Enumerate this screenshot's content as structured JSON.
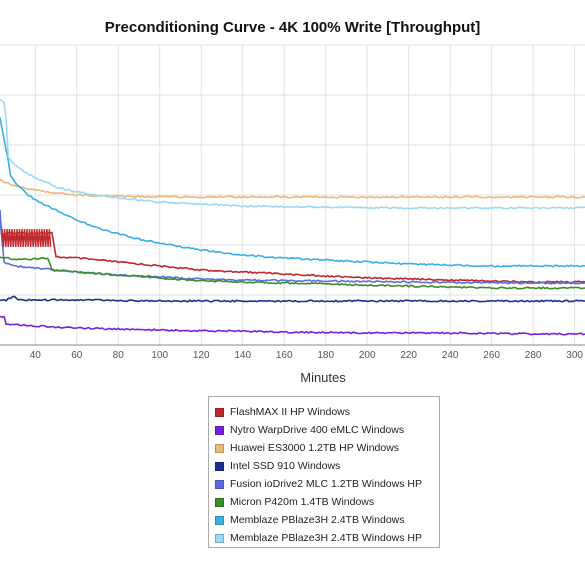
{
  "chart_data": {
    "type": "line",
    "title": "Preconditioning Curve - 4K 100% Write [Throughput]",
    "xlabel": "Minutes",
    "ylabel": "",
    "xlim": [
      23,
      305
    ],
    "x_ticks": [
      "40",
      "60",
      "80",
      "100",
      "120",
      "140",
      "160",
      "180",
      "200",
      "220",
      "240",
      "260",
      "280",
      "300"
    ],
    "grid": true,
    "legend_position": "bottom",
    "series": [
      {
        "name": "FlashMAX II HP Windows",
        "color": "#c0282d",
        "points": [
          [
            23,
            215
          ],
          [
            24,
            237
          ],
          [
            25,
            234
          ],
          [
            28,
            233
          ],
          [
            32,
            233
          ],
          [
            36,
            233
          ],
          [
            40,
            233
          ],
          [
            44,
            233
          ],
          [
            48,
            233
          ],
          [
            50,
            257
          ],
          [
            60,
            258
          ],
          [
            70,
            260
          ],
          [
            80,
            262
          ],
          [
            90,
            264
          ],
          [
            100,
            266
          ],
          [
            110,
            268
          ],
          [
            120,
            270
          ],
          [
            140,
            272
          ],
          [
            160,
            274
          ],
          [
            180,
            276
          ],
          [
            200,
            278
          ],
          [
            220,
            279
          ],
          [
            240,
            280
          ],
          [
            260,
            281
          ],
          [
            280,
            282
          ],
          [
            305,
            282
          ]
        ]
      },
      {
        "name": "Nytro WarpDrive 400 eMLC Windows",
        "color": "#7a1fe0",
        "points": [
          [
            23,
            316
          ],
          [
            25,
            317
          ],
          [
            26,
            324
          ],
          [
            40,
            326
          ],
          [
            60,
            328
          ],
          [
            80,
            329
          ],
          [
            100,
            330
          ],
          [
            120,
            331
          ],
          [
            140,
            331
          ],
          [
            160,
            332
          ],
          [
            200,
            333
          ],
          [
            240,
            333
          ],
          [
            280,
            334
          ],
          [
            305,
            334
          ]
        ]
      },
      {
        "name": "Huawei ES3000 1.2TB HP Windows",
        "color": "#e8b87a",
        "points": [
          [
            23,
            180
          ],
          [
            30,
            186
          ],
          [
            40,
            190
          ],
          [
            50,
            193
          ],
          [
            60,
            195
          ],
          [
            80,
            196
          ],
          [
            100,
            197
          ],
          [
            140,
            197
          ],
          [
            180,
            197
          ],
          [
            220,
            197
          ],
          [
            260,
            197
          ],
          [
            300,
            197
          ],
          [
            305,
            197
          ]
        ]
      },
      {
        "name": "Intel SSD 910 Windows",
        "color": "#1f2f8f",
        "points": [
          [
            23,
            301
          ],
          [
            26,
            300
          ],
          [
            30,
            296
          ],
          [
            32,
            300
          ],
          [
            40,
            300
          ],
          [
            60,
            300
          ],
          [
            100,
            301
          ],
          [
            140,
            301
          ],
          [
            180,
            301
          ],
          [
            220,
            301
          ],
          [
            260,
            301
          ],
          [
            305,
            301
          ]
        ]
      },
      {
        "name": "Fusion ioDrive2 MLC 1.2TB Windows HP",
        "color": "#5a6ee0",
        "points": [
          [
            23,
            210
          ],
          [
            23.5,
            230
          ],
          [
            25,
            262
          ],
          [
            30,
            266
          ],
          [
            40,
            268
          ],
          [
            60,
            272
          ],
          [
            80,
            275
          ],
          [
            100,
            277
          ],
          [
            120,
            279
          ],
          [
            140,
            280
          ],
          [
            180,
            281
          ],
          [
            220,
            282
          ],
          [
            260,
            283
          ],
          [
            305,
            283
          ]
        ]
      },
      {
        "name": "Micron P420m 1.4TB Windows",
        "color": "#3c8c2a",
        "points": [
          [
            23,
            257
          ],
          [
            30,
            259
          ],
          [
            40,
            259
          ],
          [
            46,
            258
          ],
          [
            48,
            270
          ],
          [
            60,
            272
          ],
          [
            80,
            275
          ],
          [
            100,
            278
          ],
          [
            120,
            281
          ],
          [
            140,
            282
          ],
          [
            160,
            283
          ],
          [
            180,
            284
          ],
          [
            200,
            285
          ],
          [
            220,
            286
          ],
          [
            240,
            287
          ],
          [
            260,
            288
          ],
          [
            280,
            288
          ],
          [
            305,
            288
          ]
        ]
      },
      {
        "name": "Memblaze PBlaze3H 2.4TB Windows",
        "color": "#3aaee8",
        "points": [
          [
            23,
            118
          ],
          [
            25,
            140
          ],
          [
            27,
            160
          ],
          [
            28,
            175
          ],
          [
            30,
            182
          ],
          [
            35,
            192
          ],
          [
            40,
            200
          ],
          [
            50,
            210
          ],
          [
            60,
            220
          ],
          [
            70,
            228
          ],
          [
            80,
            234
          ],
          [
            90,
            239
          ],
          [
            100,
            243
          ],
          [
            120,
            250
          ],
          [
            140,
            255
          ],
          [
            160,
            258
          ],
          [
            180,
            260
          ],
          [
            200,
            262
          ],
          [
            220,
            264
          ],
          [
            240,
            265
          ],
          [
            260,
            266
          ],
          [
            280,
            266
          ],
          [
            305,
            266
          ]
        ]
      },
      {
        "name": "Memblaze PBlaze3H 2.4TB Windows HP",
        "color": "#9ad8f5",
        "points": [
          [
            23,
            100
          ],
          [
            25,
            102
          ],
          [
            26,
            120
          ],
          [
            27,
            158
          ],
          [
            30,
            165
          ],
          [
            35,
            172
          ],
          [
            40,
            178
          ],
          [
            50,
            187
          ],
          [
            60,
            192
          ],
          [
            80,
            198
          ],
          [
            100,
            202
          ],
          [
            120,
            204
          ],
          [
            140,
            206
          ],
          [
            160,
            207
          ],
          [
            180,
            207
          ],
          [
            220,
            208
          ],
          [
            260,
            208
          ],
          [
            300,
            208
          ],
          [
            305,
            207
          ]
        ]
      }
    ]
  }
}
